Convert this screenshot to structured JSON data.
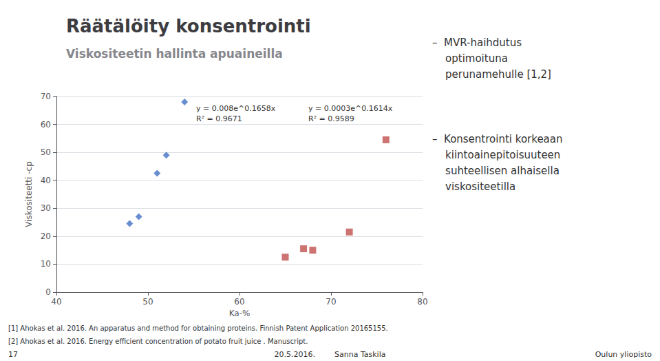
{
  "chart_data": {
    "type": "scatter",
    "title": "Räätälöity konsentrointi",
    "subtitle": "Viskositeetin hallinta apuaineilla",
    "xlabel": "Ka-%",
    "ylabel": "Viskositeetti -cp",
    "xlim": [
      40,
      80
    ],
    "ylim": [
      0,
      70
    ],
    "xticks": [
      40,
      50,
      60,
      70,
      80
    ],
    "yticks": [
      0,
      10,
      20,
      30,
      40,
      50,
      60,
      70
    ],
    "grid": true,
    "series": [
      {
        "color": "#4472C4",
        "marker": "diamond",
        "x": [
          48,
          49,
          51,
          52,
          54
        ],
        "values": [
          24.5,
          27,
          42.5,
          49,
          68
        ]
      },
      {
        "color": "#C0504D",
        "marker": "square",
        "x": [
          65,
          67,
          68,
          72,
          76
        ],
        "values": [
          12.5,
          15.5,
          15,
          21.5,
          54.5
        ]
      }
    ],
    "annotations": [
      "y = 0.008e^0.1658x",
      "R² = 0.9671",
      "y = 0.0003e^0.1614x",
      "R² = 0.9589",
      "–  MVR-haihdutus\n    optimoituna\n    perunamehulle [1,2]",
      "–  Konsentrointi korkeaan\n    kiintoainepitoisuuteen\n    suhteellisen alhaisella\n    viskositeetilla",
      "[1] Ahokas et al. 2016. An apparatus and method for obtaining proteins. Finnish Patent Application 20165155.",
      "[2] Ahokas et al. 2016. Energy efficient concentration of potato fruit juice . Manuscript.",
      "17",
      "20.5.2016.        Sanna Taskila",
      "Oulun yliopisto"
    ]
  }
}
